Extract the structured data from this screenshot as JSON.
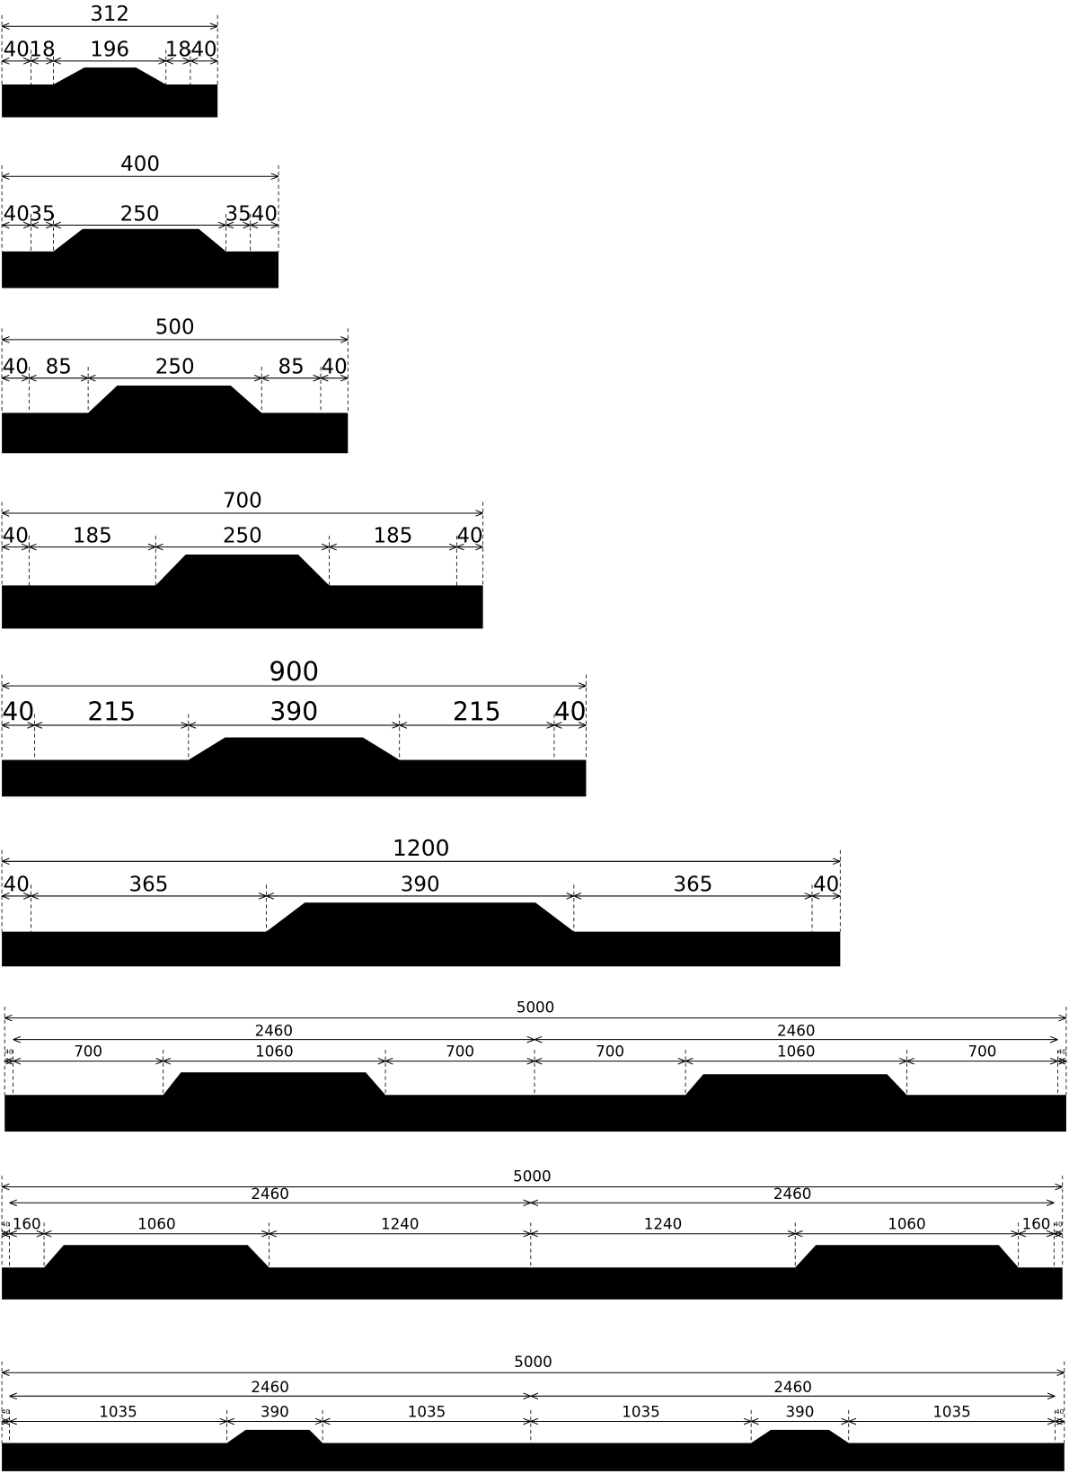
{
  "diagrams": [
    {
      "total": "312",
      "segments": [
        "40",
        "18",
        "196",
        "18",
        "40"
      ]
    },
    {
      "total": "400",
      "segments": [
        "40",
        "35",
        "250",
        "35",
        "40"
      ]
    },
    {
      "total": "500",
      "segments": [
        "40",
        "85",
        "250",
        "85",
        "40"
      ]
    },
    {
      "total": "700",
      "segments": [
        "40",
        "185",
        "250",
        "185",
        "40"
      ]
    },
    {
      "total": "900",
      "segments": [
        "40",
        "215",
        "390",
        "215",
        "40"
      ]
    },
    {
      "total": "1200",
      "segments": [
        "40",
        "365",
        "390",
        "365",
        "40"
      ]
    },
    {
      "total": "5000",
      "halves": [
        "2460",
        "2460"
      ],
      "segments": [
        "40",
        "700",
        "1060",
        "700",
        "700",
        "1060",
        "700",
        "40"
      ]
    },
    {
      "total": "5000",
      "halves": [
        "2460",
        "2460"
      ],
      "segments": [
        "40",
        "160",
        "1060",
        "1240",
        "1240",
        "1060",
        "160",
        "40"
      ]
    },
    {
      "total": "5000",
      "halves": [
        "2460",
        "2460"
      ],
      "segments": [
        "40",
        "1035",
        "390",
        "1035",
        "1035",
        "390",
        "1035",
        "40"
      ]
    }
  ]
}
